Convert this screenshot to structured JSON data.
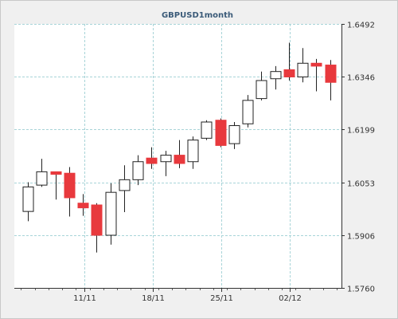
{
  "chart_data": {
    "type": "candlestick",
    "title": "GBPUSD1month",
    "xlabel": "",
    "ylabel": "",
    "ylim": [
      1.576,
      1.6492
    ],
    "y_ticks": [
      "1.6492",
      "1.6346",
      "1.6199",
      "1.6053",
      "1.5906",
      "1.5760"
    ],
    "x_ticks": [
      "11/11",
      "18/11",
      "25/11",
      "02/12"
    ],
    "grid": true,
    "colors": {
      "up": "#ffffff",
      "down": "#e8393d",
      "grid": "#a8d4d8",
      "border": "#222222"
    },
    "candles": [
      {
        "open": 1.5972,
        "high": 1.6053,
        "low": 1.5945,
        "close": 1.604
      },
      {
        "open": 1.6045,
        "high": 1.6118,
        "low": 1.604,
        "close": 1.6082
      },
      {
        "open": 1.6082,
        "high": 1.6082,
        "low": 1.6005,
        "close": 1.6075
      },
      {
        "open": 1.6078,
        "high": 1.6095,
        "low": 1.5958,
        "close": 1.601
      },
      {
        "open": 1.5995,
        "high": 1.602,
        "low": 1.596,
        "close": 1.5982
      },
      {
        "open": 1.599,
        "high": 1.5995,
        "low": 1.5858,
        "close": 1.5906
      },
      {
        "open": 1.5906,
        "high": 1.605,
        "low": 1.588,
        "close": 1.6025
      },
      {
        "open": 1.603,
        "high": 1.61,
        "low": 1.597,
        "close": 1.606
      },
      {
        "open": 1.606,
        "high": 1.6128,
        "low": 1.6045,
        "close": 1.611
      },
      {
        "open": 1.612,
        "high": 1.615,
        "low": 1.609,
        "close": 1.6105
      },
      {
        "open": 1.611,
        "high": 1.614,
        "low": 1.607,
        "close": 1.6128
      },
      {
        "open": 1.6128,
        "high": 1.617,
        "low": 1.6092,
        "close": 1.6105
      },
      {
        "open": 1.611,
        "high": 1.618,
        "low": 1.609,
        "close": 1.617
      },
      {
        "open": 1.6175,
        "high": 1.6225,
        "low": 1.617,
        "close": 1.622
      },
      {
        "open": 1.6225,
        "high": 1.623,
        "low": 1.615,
        "close": 1.6155
      },
      {
        "open": 1.616,
        "high": 1.622,
        "low": 1.6145,
        "close": 1.621
      },
      {
        "open": 1.6215,
        "high": 1.6295,
        "low": 1.6205,
        "close": 1.628
      },
      {
        "open": 1.6285,
        "high": 1.636,
        "low": 1.628,
        "close": 1.6335
      },
      {
        "open": 1.634,
        "high": 1.6375,
        "low": 1.631,
        "close": 1.636
      },
      {
        "open": 1.6365,
        "high": 1.644,
        "low": 1.6335,
        "close": 1.6345
      },
      {
        "open": 1.6345,
        "high": 1.6425,
        "low": 1.633,
        "close": 1.6383
      },
      {
        "open": 1.6383,
        "high": 1.6395,
        "low": 1.6305,
        "close": 1.6375
      },
      {
        "open": 1.6378,
        "high": 1.6392,
        "low": 1.628,
        "close": 1.633
      }
    ]
  }
}
